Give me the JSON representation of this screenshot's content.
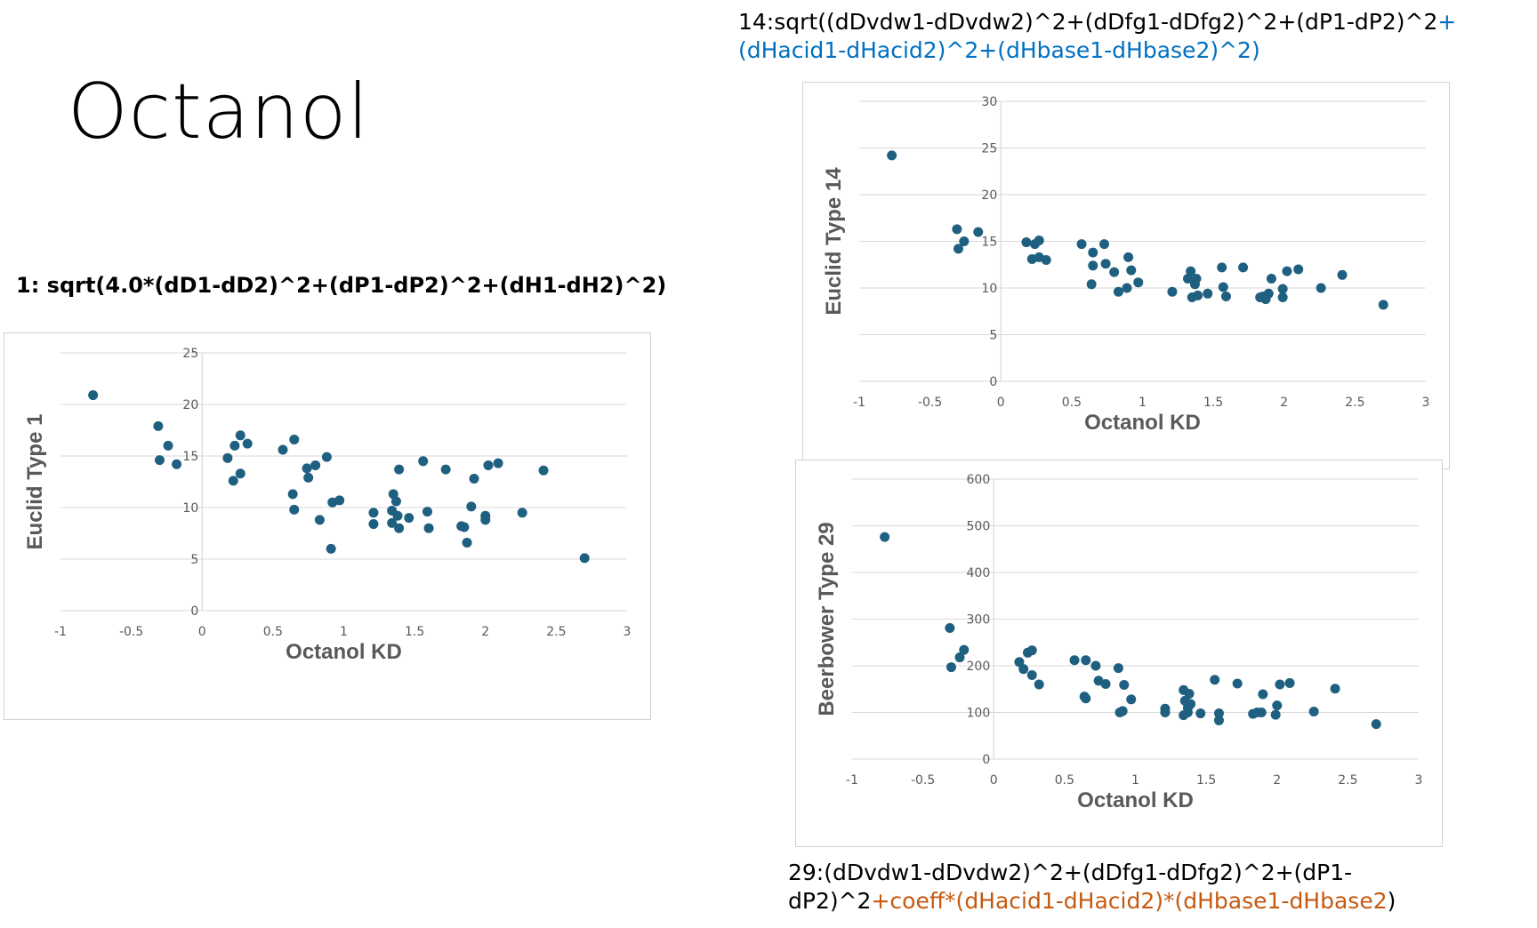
{
  "slide_title": "Octanol",
  "formulas": {
    "f1": "1: sqrt(4.0*(dD1-dD2)^2+(dP1-dP2)^2+(dH1-dH2)^2)",
    "f14_line1": "14:sqrt((dDvdw1-dDvdw2)^2+(dDfg1-dDfg2)^2+(dP1-dP2)^2",
    "f14_line1_hl": "+",
    "f14_line2": "(dHacid1-dHacid2)^2+(dHbase1-dHbase2)^2)",
    "f29_line1": "29:(dDvdw1-dDvdw2)^2+(dDfg1-dDfg2)^2+(dP1-",
    "f29_line2_a": "dP2)^2",
    "f29_line2_hl": "+coeff*(dHacid1-dHacid2)*(dHbase1-dHbase2",
    "f29_line2_b": ")"
  },
  "colors": {
    "marker": "#1f5f80",
    "gridline": "#d9d9d9",
    "axis_text": "#595959",
    "highlight_blue": "#0070c0",
    "highlight_orange": "#c55a11"
  },
  "chart_data": [
    {
      "id": "chart1",
      "type": "scatter",
      "xlabel": "Octanol KD",
      "ylabel": "Euclid Type 1",
      "xlim": [
        -1,
        3
      ],
      "ylim": [
        0,
        25
      ],
      "xticks": [
        "-1",
        "-0.5",
        "0",
        "0.5",
        "1",
        "1.5",
        "2",
        "2.5",
        "3"
      ],
      "yticks": [
        "0",
        "5",
        "10",
        "15",
        "20",
        "25"
      ],
      "grid": true,
      "points": [
        [
          -0.77,
          20.9
        ],
        [
          -0.31,
          17.9
        ],
        [
          -0.24,
          16.0
        ],
        [
          -0.3,
          14.6
        ],
        [
          -0.18,
          14.2
        ],
        [
          0.18,
          14.8
        ],
        [
          0.23,
          16.0
        ],
        [
          0.27,
          17.0
        ],
        [
          0.32,
          16.2
        ],
        [
          0.22,
          12.6
        ],
        [
          0.27,
          13.3
        ],
        [
          0.57,
          15.6
        ],
        [
          0.65,
          16.6
        ],
        [
          0.74,
          13.8
        ],
        [
          0.75,
          12.9
        ],
        [
          0.8,
          14.1
        ],
        [
          0.88,
          14.9
        ],
        [
          0.64,
          11.3
        ],
        [
          0.65,
          9.8
        ],
        [
          0.83,
          8.8
        ],
        [
          0.92,
          10.5
        ],
        [
          0.97,
          10.7
        ],
        [
          0.91,
          6.0
        ],
        [
          1.21,
          9.5
        ],
        [
          1.21,
          8.4
        ],
        [
          1.34,
          9.7
        ],
        [
          1.35,
          11.3
        ],
        [
          1.37,
          10.6
        ],
        [
          1.34,
          8.5
        ],
        [
          1.38,
          9.2
        ],
        [
          1.39,
          8.0
        ],
        [
          1.46,
          9.0
        ],
        [
          1.39,
          13.7
        ],
        [
          1.56,
          14.5
        ],
        [
          1.59,
          9.6
        ],
        [
          1.6,
          8.0
        ],
        [
          1.72,
          13.7
        ],
        [
          1.83,
          8.2
        ],
        [
          1.85,
          8.1
        ],
        [
          1.87,
          6.6
        ],
        [
          1.9,
          10.1
        ],
        [
          1.92,
          12.8
        ],
        [
          2.0,
          9.2
        ],
        [
          2.0,
          8.8
        ],
        [
          2.02,
          14.1
        ],
        [
          2.09,
          14.3
        ],
        [
          2.26,
          9.5
        ],
        [
          2.41,
          13.6
        ],
        [
          2.7,
          5.1
        ]
      ]
    },
    {
      "id": "chart14",
      "type": "scatter",
      "xlabel": "Octanol KD",
      "ylabel": "Euclid Type 14",
      "xlim": [
        -1,
        3
      ],
      "ylim": [
        0,
        30
      ],
      "xticks": [
        "-1",
        "-0.5",
        "0",
        "0.5",
        "1",
        "1.5",
        "2",
        "2.5",
        "3"
      ],
      "yticks": [
        "0",
        "5",
        "10",
        "15",
        "20",
        "25",
        "30"
      ],
      "grid": true,
      "points": [
        [
          -0.77,
          24.2
        ],
        [
          -0.31,
          16.3
        ],
        [
          -0.26,
          15.0
        ],
        [
          -0.3,
          14.2
        ],
        [
          -0.16,
          16.0
        ],
        [
          0.18,
          14.9
        ],
        [
          0.24,
          14.7
        ],
        [
          0.27,
          15.1
        ],
        [
          0.22,
          13.1
        ],
        [
          0.27,
          13.3
        ],
        [
          0.32,
          13.0
        ],
        [
          0.57,
          14.7
        ],
        [
          0.65,
          13.8
        ],
        [
          0.65,
          12.4
        ],
        [
          0.73,
          14.7
        ],
        [
          0.74,
          12.6
        ],
        [
          0.8,
          11.7
        ],
        [
          0.64,
          10.4
        ],
        [
          0.83,
          9.6
        ],
        [
          0.89,
          10.0
        ],
        [
          0.9,
          13.3
        ],
        [
          0.92,
          11.9
        ],
        [
          0.97,
          10.6
        ],
        [
          1.21,
          9.6
        ],
        [
          1.32,
          11.0
        ],
        [
          1.34,
          11.8
        ],
        [
          1.35,
          9.0
        ],
        [
          1.37,
          10.4
        ],
        [
          1.38,
          11.0
        ],
        [
          1.39,
          9.2
        ],
        [
          1.46,
          9.4
        ],
        [
          1.56,
          12.2
        ],
        [
          1.57,
          10.1
        ],
        [
          1.59,
          9.1
        ],
        [
          1.71,
          12.2
        ],
        [
          1.83,
          9.0
        ],
        [
          1.85,
          9.1
        ],
        [
          1.87,
          8.8
        ],
        [
          1.89,
          9.4
        ],
        [
          1.91,
          11.0
        ],
        [
          1.99,
          9.0
        ],
        [
          1.99,
          9.9
        ],
        [
          2.02,
          11.8
        ],
        [
          2.1,
          12.0
        ],
        [
          2.26,
          10.0
        ],
        [
          2.41,
          11.4
        ],
        [
          2.7,
          8.2
        ]
      ]
    },
    {
      "id": "chart29",
      "type": "scatter",
      "xlabel": "Octanol KD",
      "ylabel": "Beerbower Type 29",
      "xlim": [
        -1,
        3
      ],
      "ylim": [
        0,
        600
      ],
      "xticks": [
        "-1",
        "-0.5",
        "0",
        "0.5",
        "1",
        "1.5",
        "2",
        "2.5",
        "3"
      ],
      "yticks": [
        "0",
        "100",
        "200",
        "300",
        "400",
        "500",
        "600"
      ],
      "grid": true,
      "points": [
        [
          -0.77,
          476
        ],
        [
          -0.31,
          281
        ],
        [
          -0.21,
          234
        ],
        [
          -0.24,
          218
        ],
        [
          -0.3,
          197
        ],
        [
          0.18,
          208
        ],
        [
          0.21,
          193
        ],
        [
          0.24,
          228
        ],
        [
          0.27,
          233
        ],
        [
          0.27,
          180
        ],
        [
          0.32,
          160
        ],
        [
          0.57,
          212
        ],
        [
          0.65,
          212
        ],
        [
          0.64,
          134
        ],
        [
          0.65,
          130
        ],
        [
          0.72,
          200
        ],
        [
          0.74,
          168
        ],
        [
          0.79,
          161
        ],
        [
          0.88,
          195
        ],
        [
          0.89,
          100
        ],
        [
          0.91,
          103
        ],
        [
          0.92,
          159
        ],
        [
          0.97,
          128
        ],
        [
          1.21,
          108
        ],
        [
          1.21,
          100
        ],
        [
          1.34,
          148
        ],
        [
          1.35,
          125
        ],
        [
          1.37,
          100
        ],
        [
          1.34,
          94
        ],
        [
          1.37,
          110
        ],
        [
          1.38,
          140
        ],
        [
          1.39,
          118
        ],
        [
          1.46,
          98
        ],
        [
          1.56,
          170
        ],
        [
          1.59,
          98
        ],
        [
          1.59,
          83
        ],
        [
          1.72,
          162
        ],
        [
          1.83,
          97
        ],
        [
          1.86,
          100
        ],
        [
          1.89,
          100
        ],
        [
          1.9,
          139
        ],
        [
          1.99,
          95
        ],
        [
          2.0,
          115
        ],
        [
          2.02,
          160
        ],
        [
          2.09,
          163
        ],
        [
          2.26,
          102
        ],
        [
          2.41,
          151
        ],
        [
          2.7,
          75
        ]
      ]
    }
  ]
}
